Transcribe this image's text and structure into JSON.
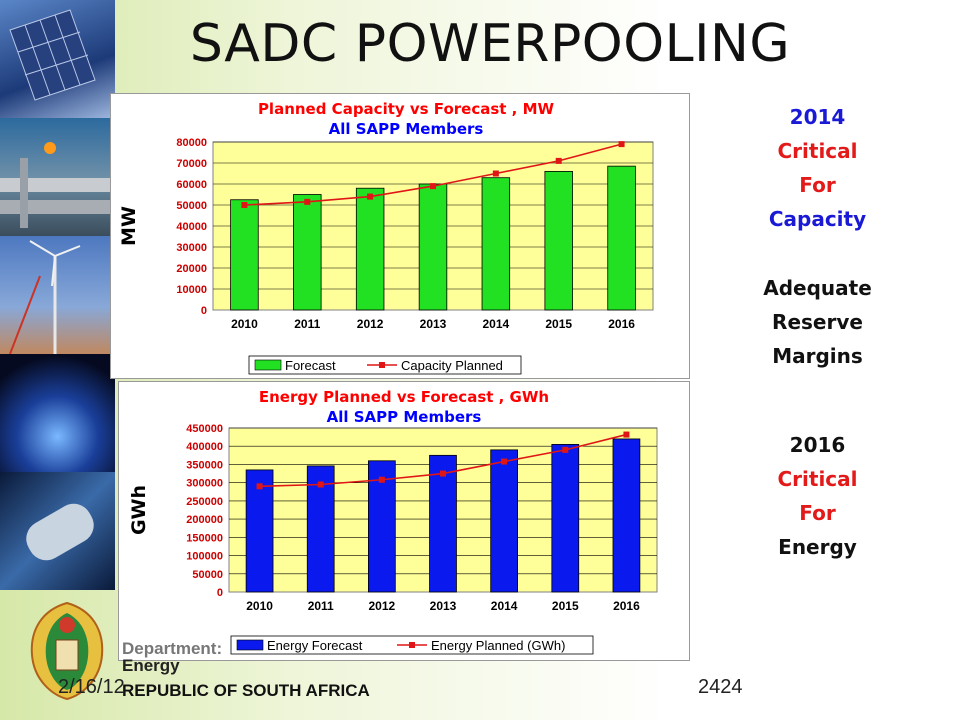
{
  "slide": {
    "title": "SADC POWERPOOLING",
    "footer_date": "2/16/12",
    "footer_number": "2424",
    "dept_line1": "Department:",
    "dept_line2": "Energy",
    "country": "REPUBLIC OF SOUTH AFRICA"
  },
  "side_notes": {
    "block1": [
      "2014",
      "Critical",
      "For",
      "Capacity"
    ],
    "block2": [
      "Adequate",
      "Reserve",
      "Margins"
    ],
    "block3": [
      "2016",
      "Critical",
      "For",
      "Energy"
    ]
  },
  "colors": {
    "bar_green": "#22e022",
    "bar_blue": "#0a1aee",
    "line_red": "#e01616",
    "plot_area": "#ffff99",
    "title_red": "#ff0000",
    "title_blue": "#0000ff"
  },
  "chart_data": [
    {
      "type": "bar",
      "title_part1": "Planned Capacity",
      "title_part2": " vs Forecast , MW",
      "subtitle": "All SAPP Members",
      "ylabel": "MW",
      "categories": [
        "2010",
        "2011",
        "2012",
        "2013",
        "2014",
        "2015",
        "2016"
      ],
      "ylim": [
        0,
        80000
      ],
      "yticks": [
        0,
        10000,
        20000,
        30000,
        40000,
        50000,
        60000,
        70000,
        80000
      ],
      "series": [
        {
          "name": "Forecast",
          "kind": "bar",
          "values": [
            52500,
            55000,
            58000,
            60000,
            63000,
            66000,
            68500
          ]
        },
        {
          "name": "Capacity Planned",
          "kind": "line",
          "values": [
            50000,
            51500,
            54000,
            59000,
            65000,
            71000,
            79000
          ]
        }
      ],
      "grid": true,
      "legend": "bottom"
    },
    {
      "type": "bar",
      "title_part1": "Energy Planned",
      "title_part2": " vs Forecast , GWh",
      "subtitle": "All SAPP Members",
      "ylabel": "GWh",
      "categories": [
        "2010",
        "2011",
        "2012",
        "2013",
        "2014",
        "2015",
        "2016"
      ],
      "ylim": [
        0,
        450000
      ],
      "yticks": [
        0,
        50000,
        100000,
        150000,
        200000,
        250000,
        300000,
        350000,
        400000,
        450000
      ],
      "series": [
        {
          "name": "Energy Forecast",
          "kind": "bar",
          "values": [
            335000,
            346000,
            360000,
            375000,
            390000,
            405000,
            420000
          ]
        },
        {
          "name": "Energy Planned (GWh)",
          "kind": "line",
          "values": [
            290000,
            295000,
            308000,
            325000,
            358000,
            390000,
            432000
          ]
        }
      ],
      "grid": true,
      "legend": "bottom"
    }
  ]
}
